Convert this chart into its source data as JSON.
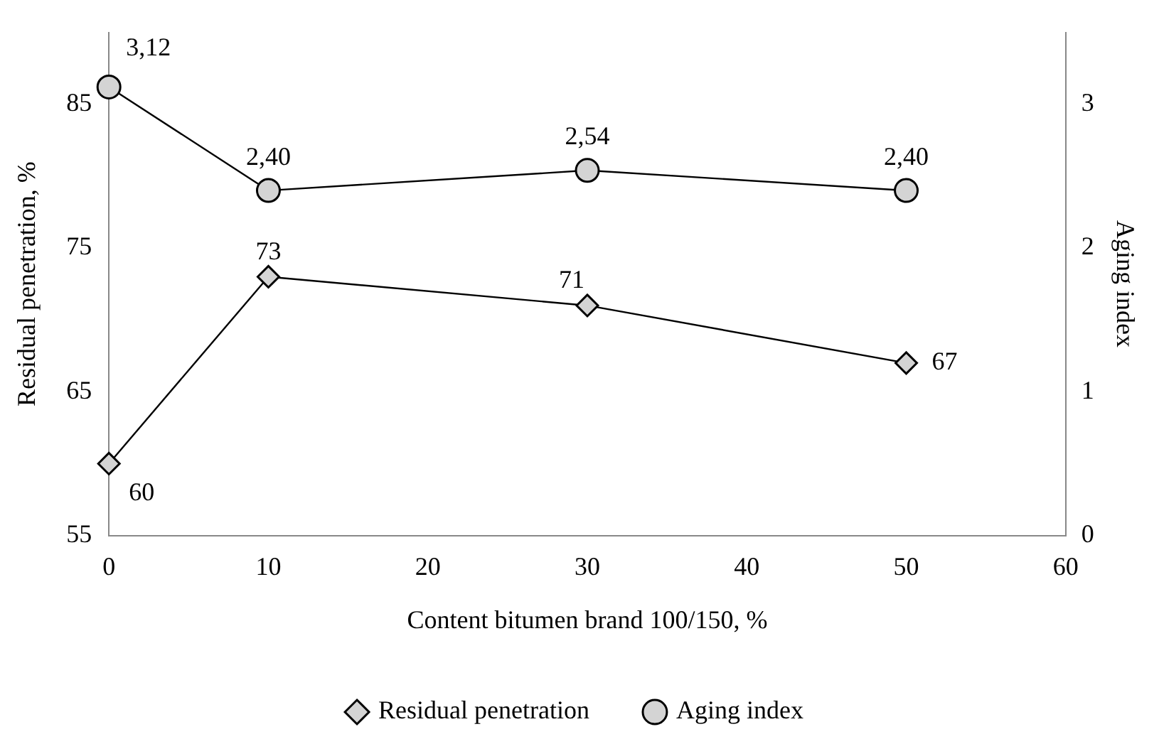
{
  "chart_data": {
    "type": "line",
    "xlabel": "Content bitumen brand 100/150, %",
    "ylabel": "Residual penetration, %",
    "y2label": "Aging index",
    "x": [
      0,
      10,
      30,
      50
    ],
    "xlim": [
      0,
      60
    ],
    "xticks": [
      0,
      10,
      20,
      30,
      40,
      50,
      60
    ],
    "ylim": [
      55,
      90
    ],
    "yticks": [
      55,
      65,
      75,
      85
    ],
    "y2lim": [
      0,
      3.5
    ],
    "y2ticks": [
      0,
      1,
      2,
      3
    ],
    "grid": false,
    "legend": "bottom",
    "series": [
      {
        "name": "Residual penetration",
        "color": "#000000",
        "marker": "diamond",
        "values": [
          60,
          73,
          71,
          67
        ],
        "value_labels": [
          "60",
          "73",
          "71",
          "67"
        ]
      },
      {
        "name": "Aging index",
        "color": "#000000",
        "marker": "circle",
        "axis": "y2",
        "values": [
          3.12,
          2.4,
          2.54,
          2.4
        ],
        "value_labels": [
          "3,12",
          "2,40",
          "2,54",
          "2,40"
        ]
      }
    ]
  }
}
